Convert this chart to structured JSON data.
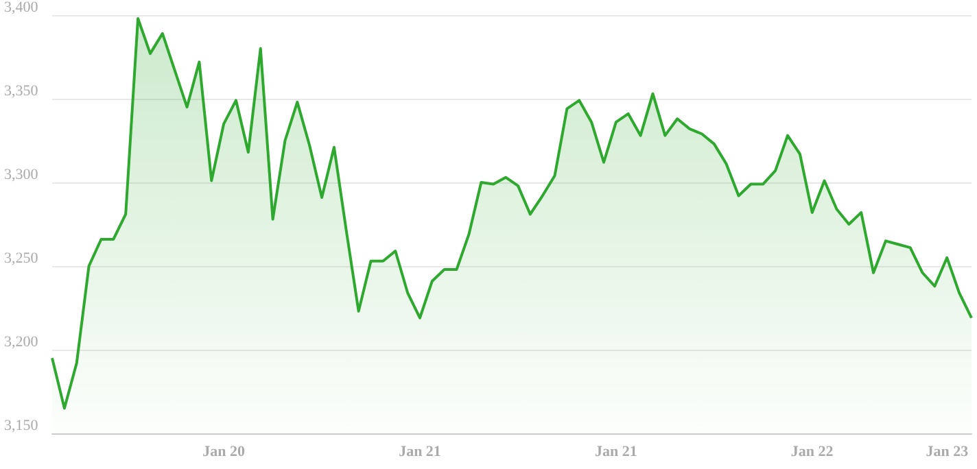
{
  "chart_data": {
    "type": "area",
    "categories": [
      null,
      null,
      null,
      null,
      null,
      null,
      null,
      null,
      null,
      null,
      null,
      null,
      null,
      null,
      "Jan 20",
      null,
      null,
      null,
      null,
      null,
      null,
      null,
      null,
      null,
      null,
      null,
      null,
      null,
      null,
      null,
      "Jan 21",
      null,
      null,
      null,
      null,
      null,
      null,
      null,
      null,
      null,
      null,
      null,
      null,
      null,
      null,
      null,
      "Jan 21",
      null,
      null,
      null,
      null,
      null,
      null,
      null,
      null,
      null,
      null,
      null,
      null,
      null,
      null,
      null,
      "Jan 22",
      null,
      null,
      null,
      null,
      null,
      null,
      null,
      null,
      null,
      null,
      "Jan 23",
      null,
      null
    ],
    "series": [
      {
        "color": "#2ea82e",
        "values": [
          3195,
          3165,
          3192,
          3250,
          3266,
          3266,
          3281,
          3398,
          3377,
          3389,
          3367,
          3345,
          3372,
          3301,
          3335,
          3349,
          3318,
          3380,
          3278,
          3325,
          3348,
          3322,
          3291,
          3321,
          3271,
          3223,
          3253,
          3253,
          3259,
          3234,
          3219,
          3241,
          3248,
          3248,
          3269,
          3300,
          3299,
          3303,
          3298,
          3281,
          3292,
          3304,
          3344,
          3349,
          3336,
          3312,
          3336,
          3341,
          3328,
          3353,
          3328,
          3338,
          3332,
          3329,
          3323,
          3311,
          3292,
          3299,
          3299,
          3307,
          3328,
          3317,
          3282,
          3301,
          3284,
          3275,
          3282,
          3246,
          3265,
          3263,
          3261,
          3246,
          3238,
          3255,
          3234,
          3219
        ]
      }
    ],
    "ylim": [
      3150,
      3400
    ],
    "yticks": [
      {
        "value": 3150,
        "label": "3,150"
      },
      {
        "value": 3200,
        "label": "3,200"
      },
      {
        "value": 3250,
        "label": "3,250"
      },
      {
        "value": 3300,
        "label": "3,300"
      },
      {
        "value": 3350,
        "label": "3,350"
      },
      {
        "value": 3400,
        "label": "3,400"
      }
    ],
    "grid": "y"
  }
}
